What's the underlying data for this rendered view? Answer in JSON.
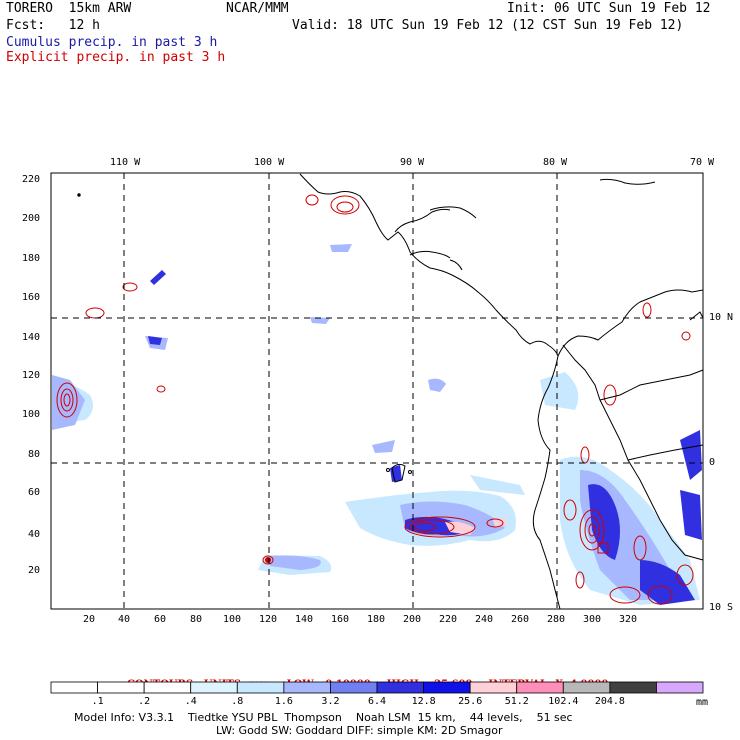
{
  "header": {
    "model": "TORERO  15km ARW",
    "org": "NCAR/MMM",
    "init": "Init: 06 UTC Sun 19 Feb 12",
    "fcst": "Fcst:   12 h",
    "valid": "Valid: 18 UTC Sun 19 Feb 12 (12 CST Sun 19 Feb 12)",
    "cumulus": "Cumulus precip. in past 3 h",
    "explicit": "Explicit precip. in past 3 h",
    "cumulus_color": "#1a1aa6",
    "explicit_color": "#d00000"
  },
  "map": {
    "lon_labels": [
      "110 W",
      "100 W",
      "90 W",
      "80 W",
      "70 W"
    ],
    "lat_labels": [
      "10 N",
      "0",
      "10 S"
    ],
    "x_ticks": [
      "20",
      "40",
      "60",
      "80",
      "100",
      "120",
      "140",
      "160",
      "180",
      "200",
      "220",
      "240",
      "260",
      "280",
      "300",
      "320"
    ],
    "y_ticks": [
      "20",
      "40",
      "60",
      "80",
      "100",
      "120",
      "140",
      "160",
      "180",
      "200",
      "220"
    ]
  },
  "contours": {
    "units": "CONTOURS:  UNITS=mm",
    "low": "LOW= 0.10000",
    "high": "HIGH=  25.600",
    "interval": "INTERVAL=X  4.0000"
  },
  "colorbar": {
    "labels": [
      ".1",
      ".2",
      ".4",
      ".8",
      "1.6",
      "3.2",
      "6.4",
      "12.8",
      "25.6",
      "51.2",
      "102.4",
      "204.8"
    ],
    "colors": [
      "#ffffff",
      "#ffffff",
      "#ffffff",
      "#e0f4ff",
      "#c8e8ff",
      "#a8b8ff",
      "#7080f0",
      "#3030e0",
      "#1010e8",
      "#ffd0d8",
      "#ff8fb8",
      "#b8b8b8",
      "#404040",
      "#d8a8ff"
    ],
    "unit": "mm"
  },
  "footer": {
    "line1": "Model Info: V3.3.1    Tiedtke YSU PBL  Thompson    Noah LSM  15 km,    44 levels,    51 sec",
    "line2": "LW: Godd SW: Goddard DIFF: simple KM: 2D Smagor"
  }
}
